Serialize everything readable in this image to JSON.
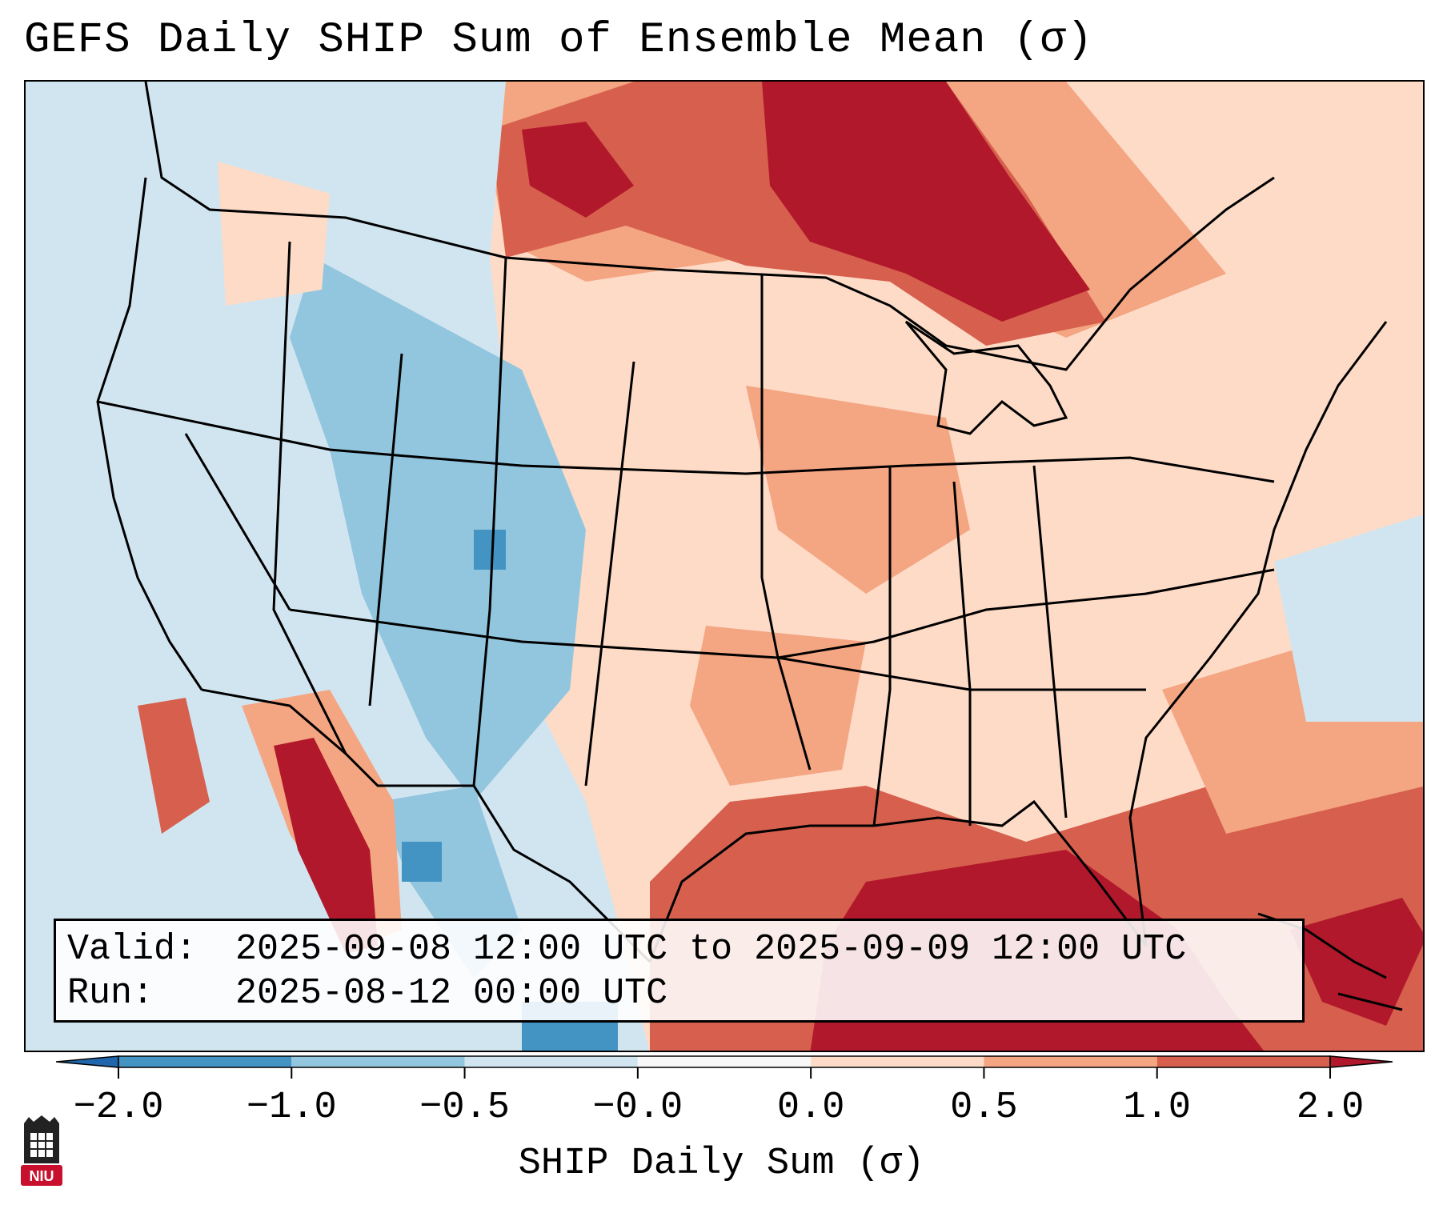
{
  "title": "GEFS Daily SHIP Sum of Ensemble Mean (σ)",
  "info": {
    "valid_label": "Valid:",
    "valid_value": "2025-09-08 12:00 UTC to 2025-09-09 12:00 UTC",
    "run_label": "Run:",
    "run_value": "2025-08-12 00:00 UTC"
  },
  "colorbar": {
    "label": "SHIP Daily Sum (σ)",
    "ticks": [
      "−2.0",
      "−1.0",
      "−0.5",
      "−0.0",
      "0.0",
      "0.5",
      "1.0",
      "2.0"
    ],
    "colors": [
      "#2166ac",
      "#4393c3",
      "#92c5de",
      "#d1e5f0",
      "#f7f7f7",
      "#fddbc7",
      "#f4a582",
      "#d6604d",
      "#b2182b"
    ]
  },
  "logo": {
    "text": "NIU",
    "color": "#c8102e"
  },
  "map_legend_classes": {
    "strong_negative": "#4393c3",
    "negative": "#92c5de",
    "slight_negative": "#d1e5f0",
    "slight_positive": "#fddbc7",
    "positive": "#f4a582",
    "strong_positive": "#d6604d",
    "extreme_positive": "#b2182b"
  }
}
